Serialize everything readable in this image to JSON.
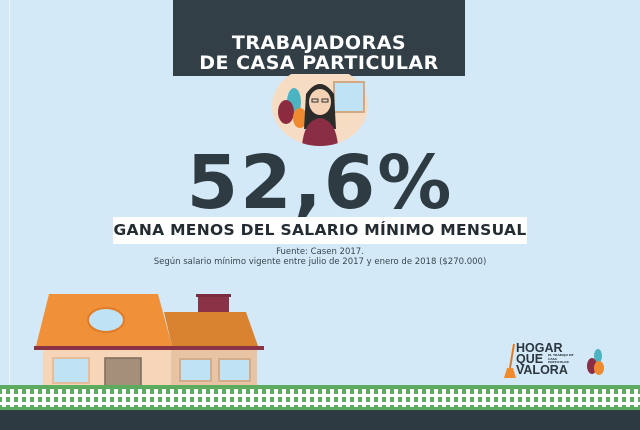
{
  "header": {
    "line1": "TRABAJADORAS",
    "line2": "DE CASA PARTICULAR"
  },
  "stat": {
    "value": "52,6%",
    "caption": "GANA MENOS DEL SALARIO MÍNIMO MENSUAL"
  },
  "source": {
    "line1": "Fuente: Casen 2017.",
    "line2": "Según salario mínimo vigente entre julio de 2017 y enero de 2018 ($270.000)"
  },
  "logo": {
    "words": [
      "HOGAR",
      "QUE",
      "VALORA"
    ],
    "tagline": "EL TRABAJO DE CASA PARTICULAR"
  },
  "colors": {
    "background": "#d3e9f8",
    "title_box": "#333f46",
    "roof": "#f0913a",
    "grass": "#5cab5e",
    "road": "#2e3a41"
  }
}
